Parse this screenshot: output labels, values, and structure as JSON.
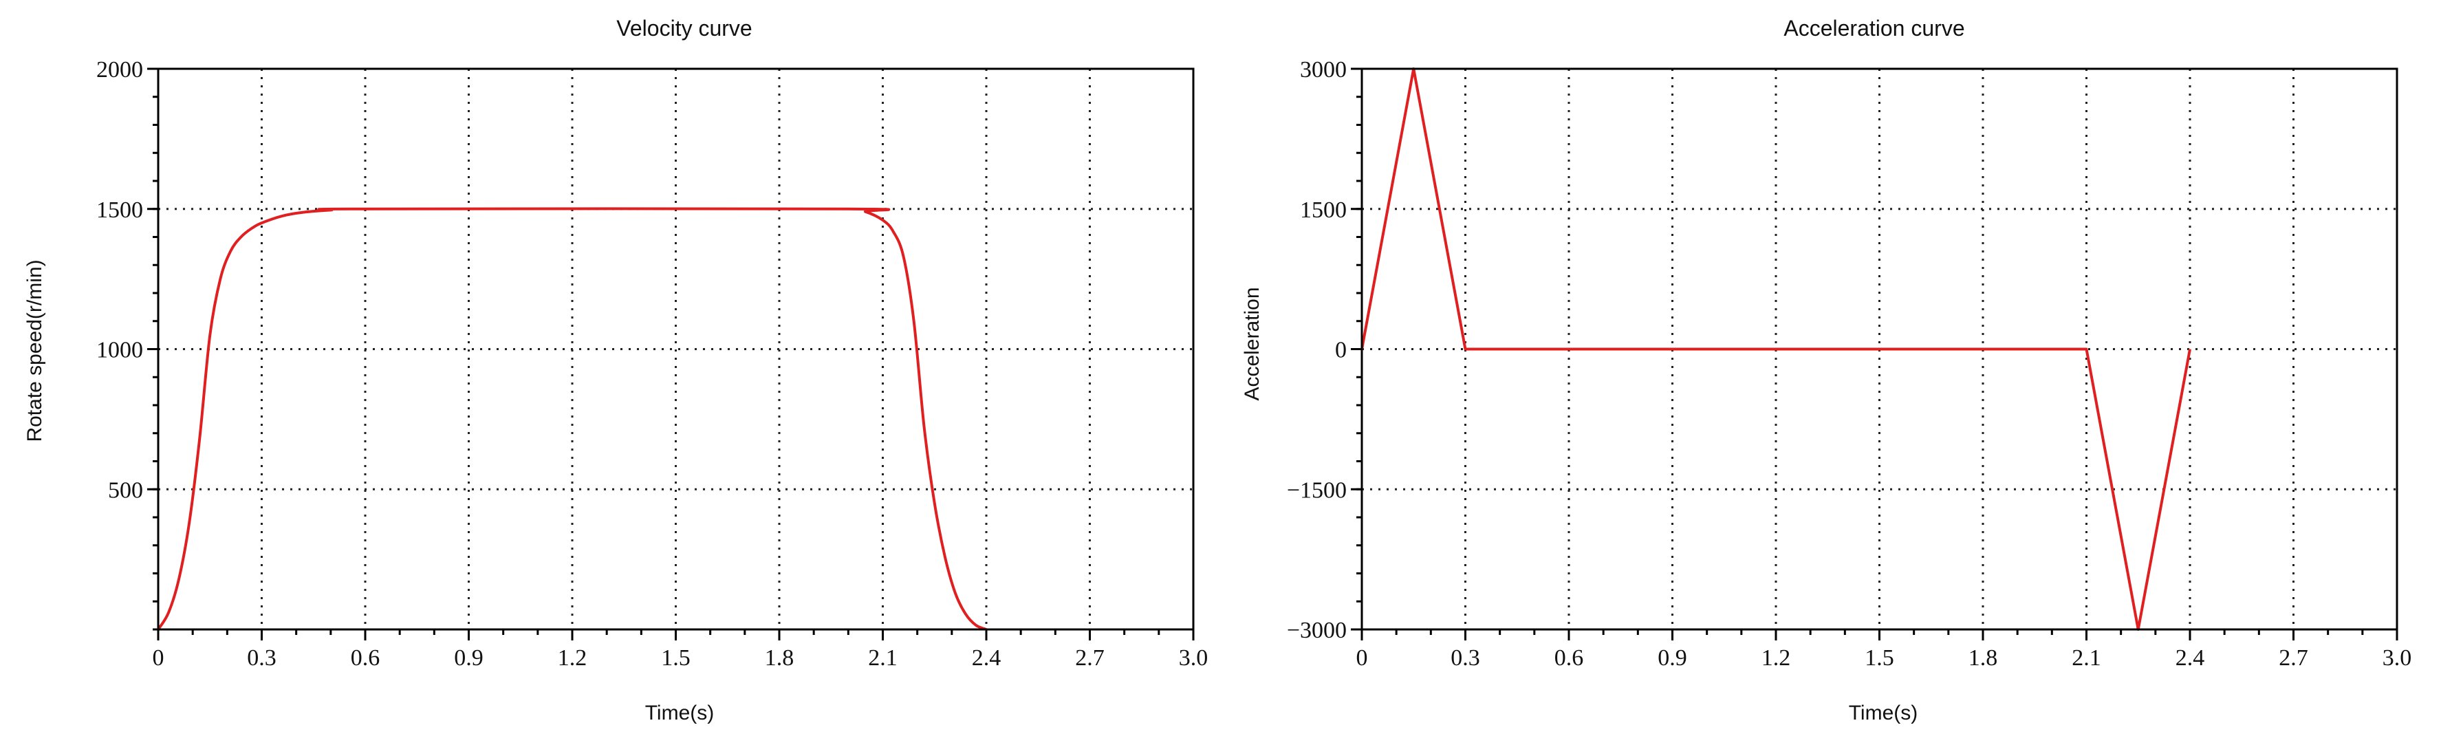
{
  "chart_data": [
    {
      "type": "line",
      "title": "Velocity curve",
      "xlabel": "Time(s)",
      "ylabel": "Rotate speed(r/min)",
      "xlim": [
        0,
        3.0
      ],
      "ylim": [
        0,
        2000
      ],
      "x_ticks": [
        0,
        0.3,
        0.6,
        0.9,
        1.2,
        1.5,
        1.8,
        2.1,
        2.4,
        2.7,
        3.0
      ],
      "x_tick_labels": [
        "0",
        "0.3",
        "0.6",
        "0.9",
        "1.2",
        "1.5",
        "1.8",
        "2.1",
        "2.4",
        "2.7",
        "3.0"
      ],
      "y_ticks": [
        500,
        1000,
        1500,
        2000
      ],
      "y_tick_labels": [
        "500",
        "1000",
        "1500",
        "2000"
      ],
      "grid": true,
      "series": [
        {
          "color": "#e02020",
          "x": [
            0,
            0.03,
            0.06,
            0.09,
            0.12,
            0.15,
            0.18,
            0.21,
            0.24,
            0.27,
            0.3,
            0.36,
            0.42,
            0.5,
            0.6,
            2.0,
            2.05,
            2.1,
            2.13,
            2.16,
            2.19,
            2.22,
            2.25,
            2.28,
            2.31,
            2.34,
            2.37,
            2.4
          ],
          "y": [
            0,
            60,
            180,
            380,
            680,
            1050,
            1250,
            1350,
            1400,
            1430,
            1450,
            1475,
            1488,
            1496,
            1500,
            1500,
            1490,
            1460,
            1420,
            1330,
            1100,
            720,
            450,
            260,
            130,
            55,
            15,
            0
          ]
        }
      ]
    },
    {
      "type": "line",
      "title": "Acceleration curve",
      "xlabel": "Time(s)",
      "ylabel": "Acceleration",
      "xlim": [
        0,
        3.0
      ],
      "ylim": [
        -3000,
        3000
      ],
      "x_ticks": [
        0,
        0.3,
        0.6,
        0.9,
        1.2,
        1.5,
        1.8,
        2.1,
        2.4,
        2.7,
        3.0
      ],
      "x_tick_labels": [
        "0",
        "0.3",
        "0.6",
        "0.9",
        "1.2",
        "1.5",
        "1.8",
        "2.1",
        "2.4",
        "2.7",
        "3.0"
      ],
      "y_ticks": [
        -3000,
        -1500,
        0,
        1500,
        3000
      ],
      "y_tick_labels": [
        "−3000",
        "−1500",
        "0",
        "1500",
        "3000"
      ],
      "grid": true,
      "series": [
        {
          "color": "#e02020",
          "x": [
            0,
            0.15,
            0.3,
            2.1,
            2.25,
            2.4
          ],
          "y": [
            0,
            3000,
            0,
            0,
            -3000,
            0
          ]
        }
      ]
    }
  ]
}
